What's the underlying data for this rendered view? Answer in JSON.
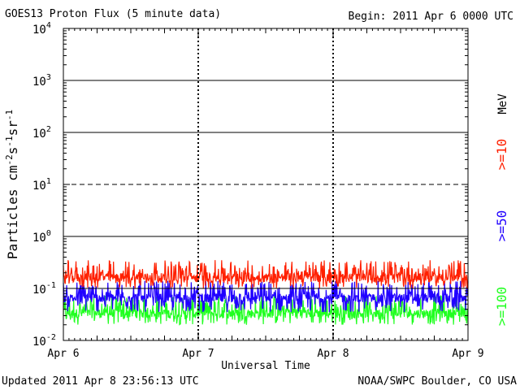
{
  "header": {
    "title": "GOES13 Proton Flux (5 minute data)",
    "begin": "Begin: 2011 Apr 6 0000 UTC"
  },
  "footer": {
    "updated": "Updated 2011 Apr  8 23:56:13 UTC",
    "credit": "NOAA/SWPC Boulder, CO USA"
  },
  "chart_data": {
    "type": "line",
    "title": "GOES13 Proton Flux (5 minute data)",
    "xlabel": "Universal Time",
    "ylabel": "Particles cm-2s-1sr-1",
    "y_scale": "log",
    "ylim": [
      0.01,
      10000
    ],
    "xlim": [
      0,
      3
    ],
    "x_unit": "days since 2011 Apr 6 0000 UTC",
    "x_ticks": [
      {
        "value": 0,
        "label": "Apr 6"
      },
      {
        "value": 1,
        "label": "Apr 7"
      },
      {
        "value": 2,
        "label": "Apr 8"
      },
      {
        "value": 3,
        "label": "Apr 9"
      }
    ],
    "y_ticks": [
      {
        "value": 0.01,
        "base": "10",
        "exp": "-2"
      },
      {
        "value": 0.1,
        "base": "10",
        "exp": "-1"
      },
      {
        "value": 1,
        "base": "10",
        "exp": "0"
      },
      {
        "value": 10,
        "base": "10",
        "exp": "1"
      },
      {
        "value": 100,
        "base": "10",
        "exp": "2"
      },
      {
        "value": 1000,
        "base": "10",
        "exp": "3"
      },
      {
        "value": 10000,
        "base": "10",
        "exp": "4"
      }
    ],
    "grid": "solid at 1, 100, 1000; dashed at 10; solid at 0.1 threshold",
    "legend_placement": "right (rotated)",
    "unit_label": "MeV",
    "series": [
      {
        "name": ">=10",
        "color": "#ff2000",
        "level": 0.16,
        "spread": [
          0.1,
          0.35
        ]
      },
      {
        "name": ">=50",
        "color": "#2000ff",
        "level": 0.065,
        "spread": [
          0.035,
          0.14
        ]
      },
      {
        "name": ">=100",
        "color": "#20ff20",
        "level": 0.033,
        "spread": [
          0.02,
          0.075
        ]
      }
    ],
    "sample_interval": "5 minute"
  }
}
